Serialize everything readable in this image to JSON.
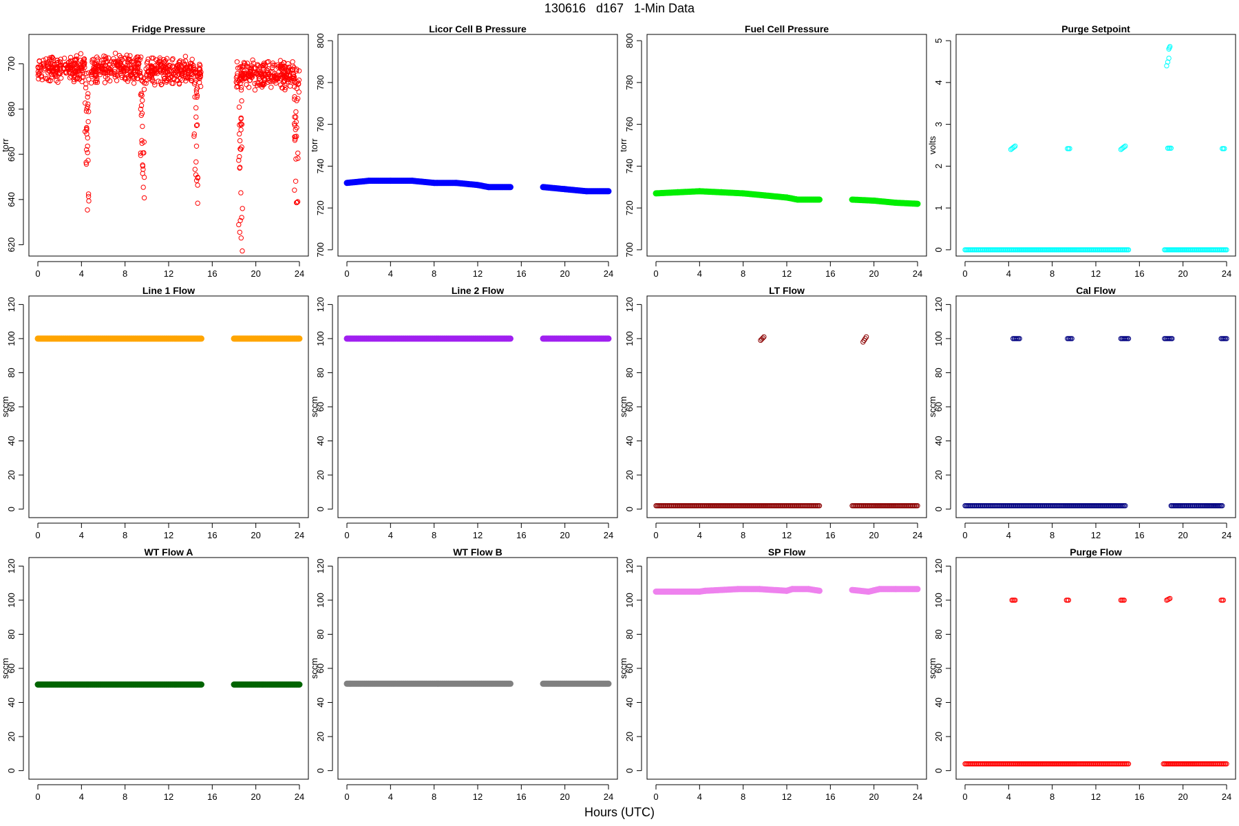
{
  "page": {
    "title": "130616   d167   1-Min Data",
    "xlabel": "Hours (UTC)"
  },
  "chart_data": [
    {
      "type": "scatter",
      "title": "Fridge Pressure",
      "ylabel": "torr",
      "xlim": [
        0,
        24
      ],
      "ylim": [
        615,
        713
      ],
      "xticks": [
        0,
        4,
        8,
        12,
        16,
        20,
        24
      ],
      "yticks": [
        620,
        640,
        660,
        680,
        700
      ],
      "color": "#ff0000",
      "marker": "open",
      "segments": [
        {
          "x": [
            0.0,
            4.3
          ],
          "y_center": 698,
          "spread": 5
        },
        {
          "x": [
            4.9,
            9.5
          ],
          "y_center": 698,
          "spread": 5
        },
        {
          "x": [
            9.9,
            14.3
          ],
          "y_center": 697,
          "spread": 5
        },
        {
          "x": [
            14.6,
            15.0
          ],
          "y_center": 695,
          "spread": 4
        },
        {
          "x": [
            18.2,
            19.1
          ],
          "y_center": 695,
          "spread": 5
        },
        {
          "x": [
            19.1,
            23.6
          ],
          "y_center": 695,
          "spread": 5
        },
        {
          "x": [
            23.9,
            24.0
          ],
          "y_center": 692,
          "spread": 4
        }
      ],
      "dips": [
        {
          "x": 4.5,
          "ymin": 633,
          "ymax": 698
        },
        {
          "x": 9.6,
          "ymin": 640,
          "ymax": 698
        },
        {
          "x": 14.5,
          "ymin": 636,
          "ymax": 698
        },
        {
          "x": 18.6,
          "ymin": 616,
          "ymax": 698
        },
        {
          "x": 23.7,
          "ymin": 638,
          "ymax": 698
        }
      ]
    },
    {
      "type": "scatter",
      "title": "Licor Cell B Pressure",
      "ylabel": "torr",
      "xlim": [
        0,
        24
      ],
      "ylim": [
        697,
        803
      ],
      "xticks": [
        0,
        4,
        8,
        12,
        16,
        20,
        24
      ],
      "yticks": [
        700,
        720,
        740,
        760,
        780,
        800
      ],
      "color": "#0000ff",
      "marker": "filled",
      "series": [
        {
          "x": [
            0,
            2,
            4,
            6,
            8,
            10,
            12,
            13,
            15
          ],
          "y": [
            732,
            733,
            733,
            733,
            732,
            732,
            731,
            730,
            730
          ]
        },
        {
          "x": [
            18,
            20,
            22,
            24
          ],
          "y": [
            730,
            729,
            728,
            728
          ]
        }
      ]
    },
    {
      "type": "scatter",
      "title": "Fuel Cell Pressure",
      "ylabel": "torr",
      "xlim": [
        0,
        24
      ],
      "ylim": [
        697,
        803
      ],
      "xticks": [
        0,
        4,
        8,
        12,
        16,
        20,
        24
      ],
      "yticks": [
        700,
        720,
        740,
        760,
        780,
        800
      ],
      "color": "#00ee00",
      "marker": "filled",
      "series": [
        {
          "x": [
            0,
            2,
            4,
            6,
            8,
            10,
            12,
            13,
            15
          ],
          "y": [
            727,
            727.5,
            728,
            727.5,
            727,
            726,
            725,
            724,
            724
          ]
        },
        {
          "x": [
            18,
            20,
            22,
            24
          ],
          "y": [
            724,
            723.5,
            722.5,
            722
          ]
        }
      ]
    },
    {
      "type": "scatter",
      "title": "Purge Setpoint",
      "ylabel": "volts",
      "xlim": [
        0,
        24
      ],
      "ylim": [
        -0.15,
        5.15
      ],
      "xticks": [
        0,
        4,
        8,
        12,
        16,
        20,
        24
      ],
      "yticks": [
        0,
        1,
        2,
        3,
        4,
        5
      ],
      "color": "#00ffff",
      "marker": "open",
      "series": [
        {
          "x": [
            0,
            15
          ],
          "y": [
            0,
            0
          ]
        },
        {
          "x": [
            18.3,
            24
          ],
          "y": [
            0,
            0
          ]
        },
        {
          "x": [
            4.2,
            4.6
          ],
          "y": [
            2.4,
            2.48
          ]
        },
        {
          "x": [
            9.4,
            9.6
          ],
          "y": [
            2.42,
            2.42
          ]
        },
        {
          "x": [
            14.3,
            14.7
          ],
          "y": [
            2.4,
            2.48
          ]
        },
        {
          "x": [
            18.6,
            18.9
          ],
          "y": [
            2.43,
            2.43
          ]
        },
        {
          "x": [
            23.6,
            23.8
          ],
          "y": [
            2.42,
            2.42
          ]
        },
        {
          "x": [
            18.5,
            18.7
          ],
          "y": [
            4.4,
            4.58
          ]
        },
        {
          "x": [
            18.7,
            18.8
          ],
          "y": [
            4.8,
            4.86
          ]
        }
      ]
    },
    {
      "type": "scatter",
      "title": "Line 1 Flow",
      "ylabel": "sccm",
      "xlim": [
        0,
        24
      ],
      "ylim": [
        -5,
        125
      ],
      "xticks": [
        0,
        4,
        8,
        12,
        16,
        20,
        24
      ],
      "yticks": [
        0,
        20,
        40,
        60,
        80,
        100,
        120
      ],
      "color": "#ffa500",
      "marker": "filled",
      "series": [
        {
          "x": [
            0,
            15
          ],
          "y": [
            100,
            100
          ]
        },
        {
          "x": [
            18,
            24
          ],
          "y": [
            100,
            100
          ]
        }
      ]
    },
    {
      "type": "scatter",
      "title": "Line 2 Flow",
      "ylabel": "sccm",
      "xlim": [
        0,
        24
      ],
      "ylim": [
        -5,
        125
      ],
      "xticks": [
        0,
        4,
        8,
        12,
        16,
        20,
        24
      ],
      "yticks": [
        0,
        20,
        40,
        60,
        80,
        100,
        120
      ],
      "color": "#a020f0",
      "marker": "filled",
      "series": [
        {
          "x": [
            0,
            15
          ],
          "y": [
            100,
            100
          ]
        },
        {
          "x": [
            18,
            24
          ],
          "y": [
            100,
            100
          ]
        }
      ]
    },
    {
      "type": "scatter",
      "title": "LT Flow",
      "ylabel": "sccm",
      "xlim": [
        0,
        24
      ],
      "ylim": [
        -5,
        125
      ],
      "xticks": [
        0,
        4,
        8,
        12,
        16,
        20,
        24
      ],
      "yticks": [
        0,
        20,
        40,
        60,
        80,
        100,
        120
      ],
      "color": "#8b0000",
      "marker": "open",
      "series": [
        {
          "x": [
            0,
            15
          ],
          "y": [
            2,
            2
          ]
        },
        {
          "x": [
            18,
            24
          ],
          "y": [
            2,
            2
          ]
        },
        {
          "x": [
            9.6,
            9.9
          ],
          "y": [
            99,
            101
          ]
        },
        {
          "x": [
            19.0,
            19.3
          ],
          "y": [
            98,
            101
          ]
        }
      ]
    },
    {
      "type": "scatter",
      "title": "Cal Flow",
      "ylabel": "sccm",
      "xlim": [
        0,
        24
      ],
      "ylim": [
        -5,
        125
      ],
      "xticks": [
        0,
        4,
        8,
        12,
        16,
        20,
        24
      ],
      "yticks": [
        0,
        20,
        40,
        60,
        80,
        100,
        120
      ],
      "color": "#000080",
      "marker": "open",
      "series": [
        {
          "x": [
            0,
            14.7
          ],
          "y": [
            2,
            2
          ]
        },
        {
          "x": [
            18.9,
            23.6
          ],
          "y": [
            2,
            2
          ]
        },
        {
          "x": [
            4.4,
            5.0
          ],
          "y": [
            100,
            100
          ]
        },
        {
          "x": [
            9.4,
            9.8
          ],
          "y": [
            100,
            100
          ]
        },
        {
          "x": [
            14.3,
            15.0
          ],
          "y": [
            100,
            100
          ]
        },
        {
          "x": [
            18.3,
            19.0
          ],
          "y": [
            100,
            100
          ]
        },
        {
          "x": [
            23.5,
            24.0
          ],
          "y": [
            100,
            100
          ]
        }
      ]
    },
    {
      "type": "scatter",
      "title": "WT Flow A",
      "ylabel": "sccm",
      "xlim": [
        0,
        24
      ],
      "ylim": [
        -5,
        125
      ],
      "xticks": [
        0,
        4,
        8,
        12,
        16,
        20,
        24
      ],
      "yticks": [
        0,
        20,
        40,
        60,
        80,
        100,
        120
      ],
      "color": "#006400",
      "marker": "filled",
      "series": [
        {
          "x": [
            0,
            15
          ],
          "y": [
            50.5,
            50.5
          ]
        },
        {
          "x": [
            18,
            24
          ],
          "y": [
            50.5,
            50.5
          ]
        }
      ]
    },
    {
      "type": "scatter",
      "title": "WT Flow B",
      "ylabel": "sccm",
      "xlim": [
        0,
        24
      ],
      "ylim": [
        -5,
        125
      ],
      "xticks": [
        0,
        4,
        8,
        12,
        16,
        20,
        24
      ],
      "yticks": [
        0,
        20,
        40,
        60,
        80,
        100,
        120
      ],
      "color": "#808080",
      "marker": "filled",
      "series": [
        {
          "x": [
            0,
            15
          ],
          "y": [
            51,
            51
          ]
        },
        {
          "x": [
            18,
            24
          ],
          "y": [
            51,
            51
          ]
        }
      ]
    },
    {
      "type": "scatter",
      "title": "SP Flow",
      "ylabel": "sccm",
      "xlim": [
        0,
        24
      ],
      "ylim": [
        -5,
        125
      ],
      "xticks": [
        0,
        4,
        8,
        12,
        16,
        20,
        24
      ],
      "yticks": [
        0,
        20,
        40,
        60,
        80,
        100,
        120
      ],
      "color": "#ee82ee",
      "marker": "filled",
      "series": [
        {
          "x": [
            0,
            4,
            4.5,
            7.5,
            9.5,
            12,
            12.5,
            14,
            15
          ],
          "y": [
            105,
            105,
            105.5,
            106.5,
            106.5,
            105.5,
            106.5,
            106.5,
            105.5
          ]
        },
        {
          "x": [
            18,
            19.5,
            20.5,
            22,
            24
          ],
          "y": [
            106,
            105,
            106.5,
            106.5,
            106.5
          ]
        }
      ]
    },
    {
      "type": "scatter",
      "title": "Purge Flow",
      "ylabel": "sccm",
      "xlim": [
        0,
        24
      ],
      "ylim": [
        -5,
        125
      ],
      "xticks": [
        0,
        4,
        8,
        12,
        16,
        20,
        24
      ],
      "yticks": [
        0,
        20,
        40,
        60,
        80,
        100,
        120
      ],
      "color": "#ff0000",
      "marker": "open",
      "series": [
        {
          "x": [
            0,
            15
          ],
          "y": [
            4,
            4
          ]
        },
        {
          "x": [
            18.2,
            24
          ],
          "y": [
            4,
            4
          ]
        },
        {
          "x": [
            4.3,
            4.6
          ],
          "y": [
            100,
            100
          ]
        },
        {
          "x": [
            9.3,
            9.5
          ],
          "y": [
            100,
            100
          ]
        },
        {
          "x": [
            14.3,
            14.6
          ],
          "y": [
            100,
            100
          ]
        },
        {
          "x": [
            18.5,
            18.8
          ],
          "y": [
            100,
            101
          ]
        },
        {
          "x": [
            23.5,
            23.7
          ],
          "y": [
            100,
            100
          ]
        }
      ]
    }
  ]
}
